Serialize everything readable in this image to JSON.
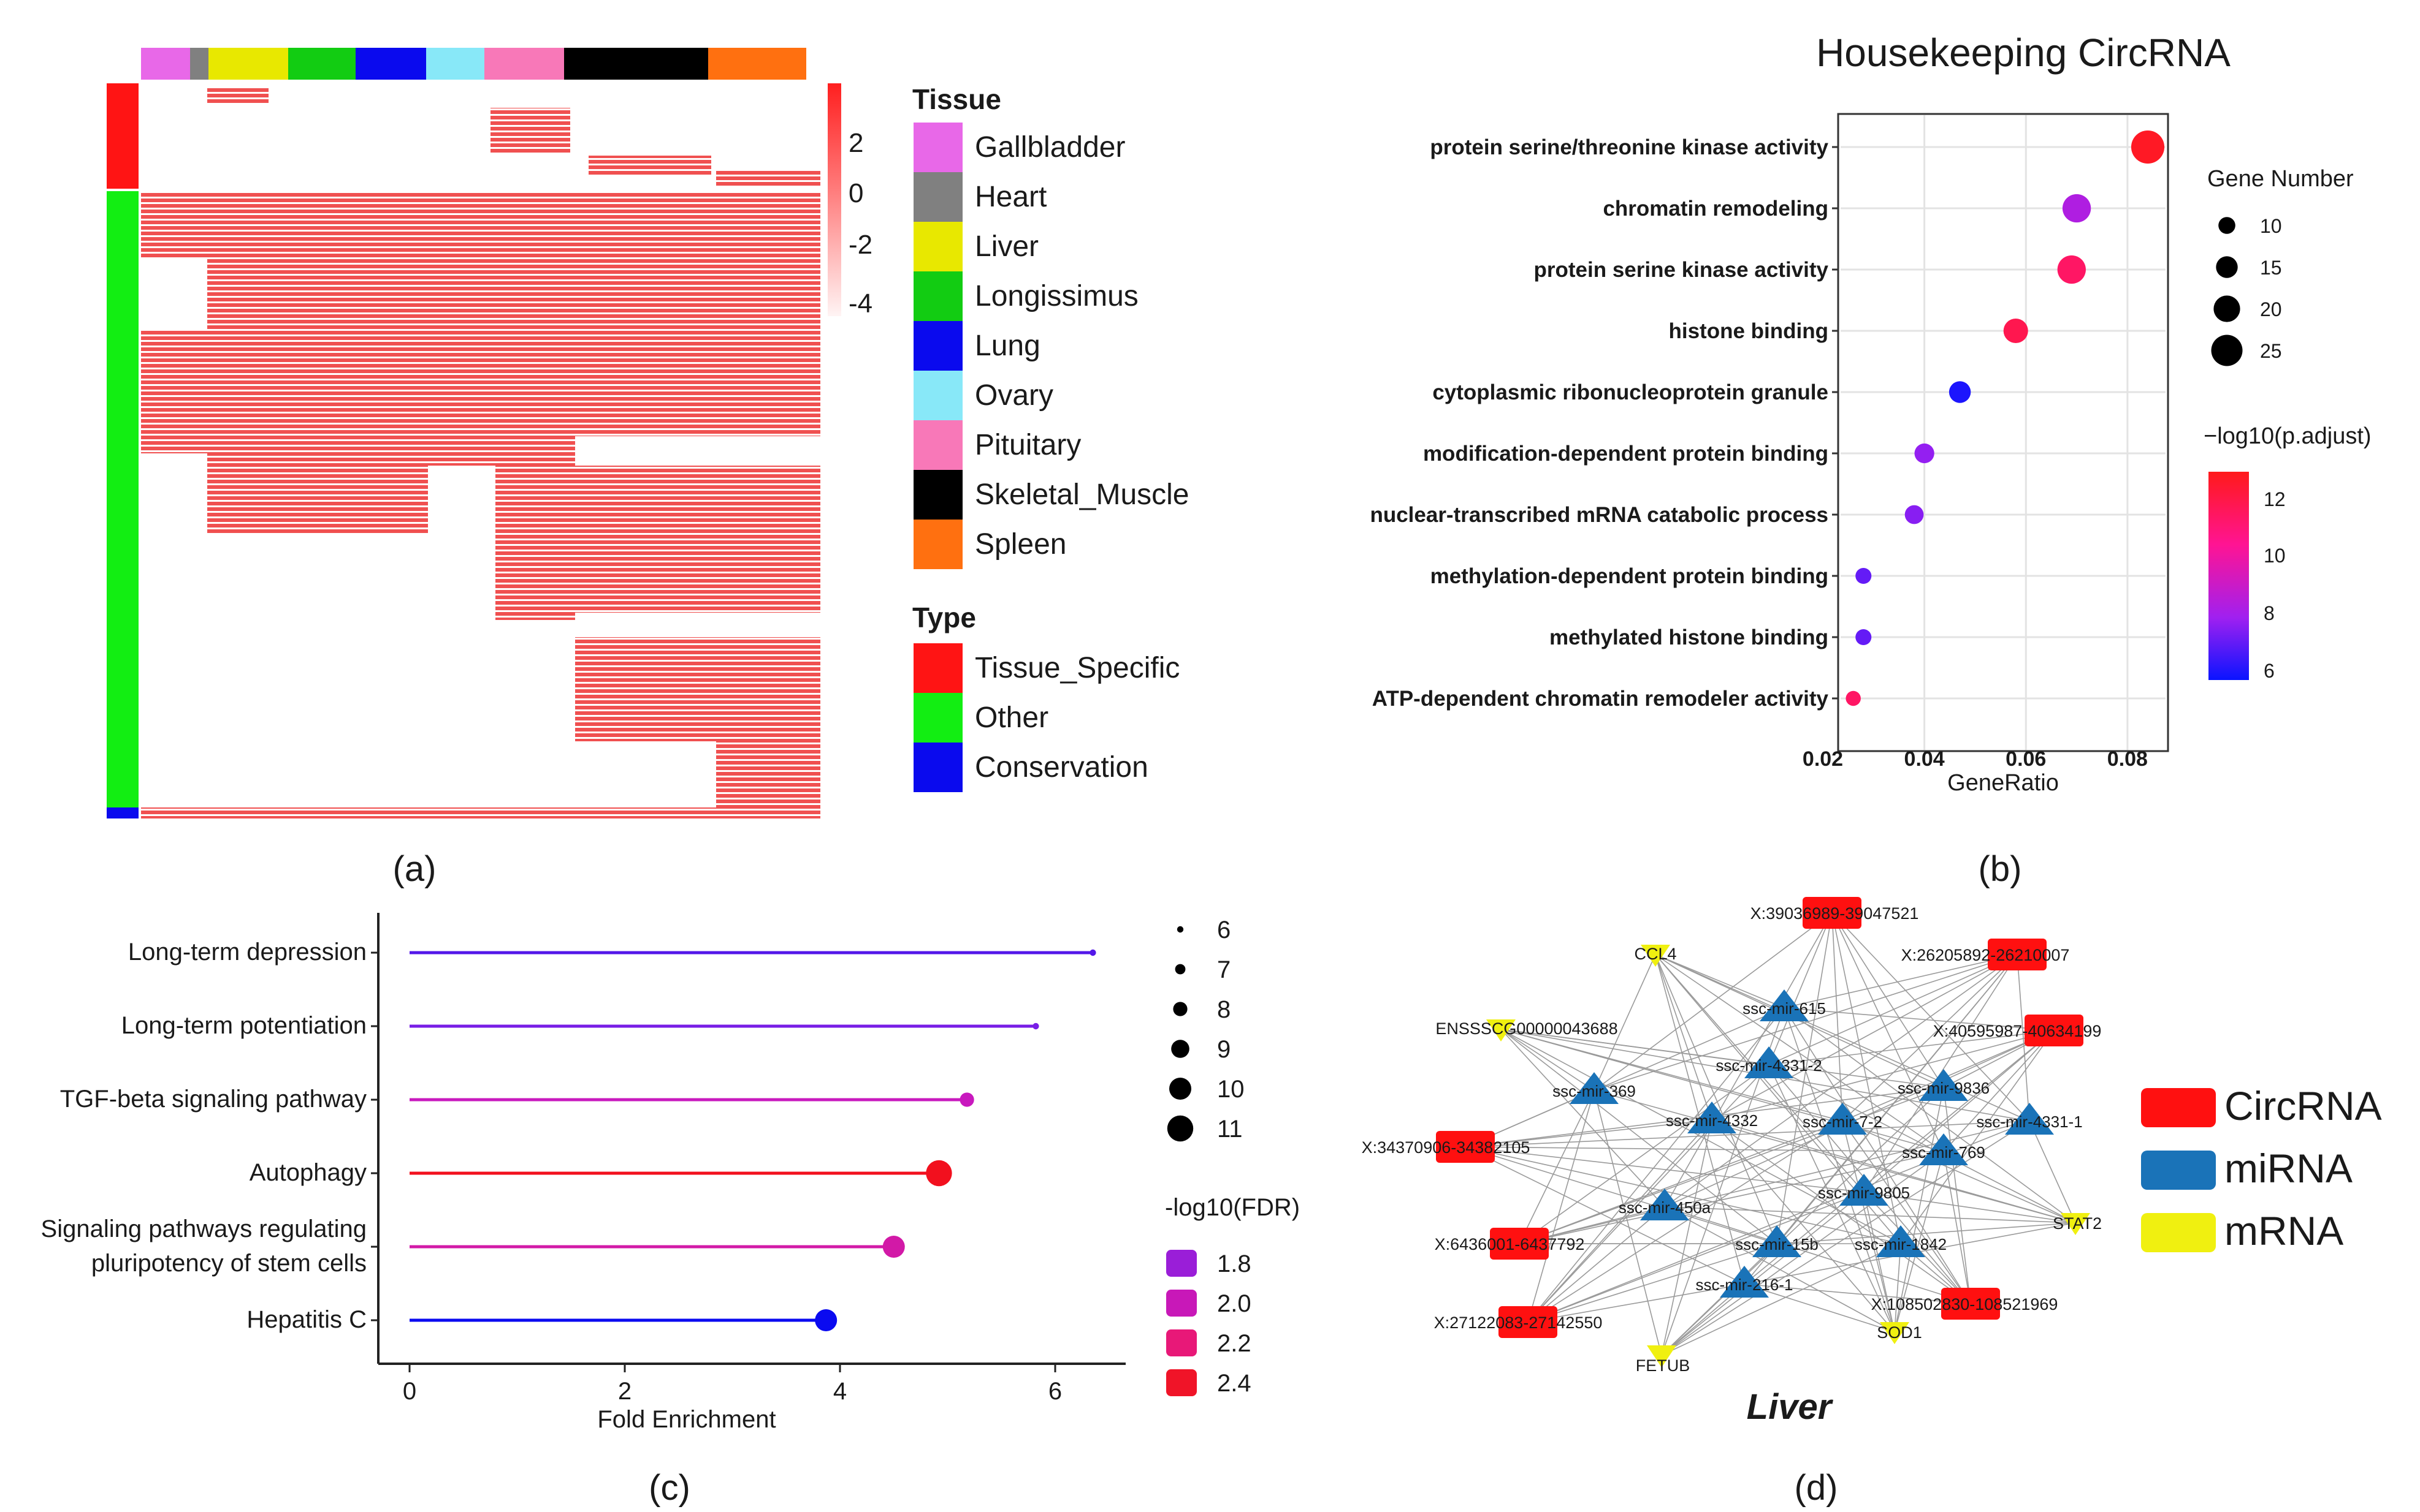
{
  "panel_a": {
    "panel_label": "(a)",
    "colorbar_ticks": [
      "2",
      "0",
      "-2",
      "-4"
    ],
    "tissue_title": "Tissue",
    "tissues": [
      {
        "name": "Gallbladder",
        "color": "#e868e8"
      },
      {
        "name": "Heart",
        "color": "#808080"
      },
      {
        "name": "Liver",
        "color": "#e8e800"
      },
      {
        "name": "Longissimus",
        "color": "#12cc12"
      },
      {
        "name": "Lung",
        "color": "#0a0aee"
      },
      {
        "name": "Ovary",
        "color": "#88e8f8"
      },
      {
        "name": "Pituitary",
        "color": "#f878b8"
      },
      {
        "name": "Skeletal_Muscle",
        "color": "#000000"
      },
      {
        "name": "Spleen",
        "color": "#ff7010"
      }
    ],
    "type_title": "Type",
    "types": [
      {
        "name": "Tissue_Specific",
        "color": "#ff1414"
      },
      {
        "name": "Other",
        "color": "#12ee12"
      },
      {
        "name": "Conservation",
        "color": "#0a0aee"
      }
    ]
  },
  "panel_b": {
    "panel_label": "(b)",
    "size_legend_title": "Gene Number",
    "size_legend_values": [
      "10",
      "15",
      "20",
      "25"
    ],
    "color_legend_title": "−log10(p.adjust)",
    "color_legend_ticks": [
      "12",
      "10",
      "8",
      "6"
    ]
  },
  "panel_c": {
    "panel_label": "(c)",
    "size_legend_values": [
      "6",
      "7",
      "8",
      "9",
      "10",
      "11"
    ],
    "color_legend_title": "-log10(FDR)",
    "color_legend": [
      {
        "label": "1.8",
        "color": "#9a1ed8"
      },
      {
        "label": "2.0",
        "color": "#c818b8"
      },
      {
        "label": "2.2",
        "color": "#e81878"
      },
      {
        "label": "2.4",
        "color": "#f01428"
      }
    ]
  },
  "panel_d": {
    "panel_label": "(d)",
    "title": "Liver",
    "legend": [
      {
        "label": "CircRNA",
        "color": "#ff1010"
      },
      {
        "label": "miRNA",
        "color": "#1a73b8"
      },
      {
        "label": "mRNA",
        "color": "#f0f010"
      }
    ],
    "circ_nodes": [
      "X:39036989-39047521",
      "X:26205892-26210007",
      "X:40595987-40634199",
      "X:34370906-34382105",
      "X:6436001-6437792",
      "X:27122083-27142550",
      "X:108502830-108521969"
    ],
    "mirna_nodes": [
      "ssc-mir-615",
      "ssc-mir-4331-2",
      "ssc-mir-369",
      "ssc-mir-9836",
      "ssc-mir-4332",
      "ssc-mir-7-2",
      "ssc-mir-4331-1",
      "ssc-mir-769",
      "ssc-mir-9805",
      "ssc-mir-450a",
      "ssc-mir-15b",
      "ssc-mir-1842",
      "ssc-mir-216-1"
    ],
    "mrna_nodes": [
      "CCL4",
      "ENSSSCG00000043688",
      "STAT2",
      "SOD1",
      "FETUB"
    ]
  },
  "chart_data": [
    {
      "type": "heatmap",
      "panel": "a",
      "value_range": [
        -4,
        2.5
      ],
      "columns_groups": [
        "Gallbladder",
        "Heart",
        "Liver",
        "Longissimus",
        "Lung",
        "Ovary",
        "Pituitary",
        "Skeletal_Muscle",
        "Spleen"
      ],
      "row_groups": [
        "Tissue_Specific",
        "Other",
        "Conservation"
      ]
    },
    {
      "type": "scatter",
      "panel": "b",
      "title": "Housekeeping CircRNA",
      "xlabel": "GeneRatio",
      "ylabel": "",
      "xlim": [
        0.02,
        0.088
      ],
      "x_ticks": [
        "0.02",
        "0.04",
        "0.06",
        "0.08"
      ],
      "categories": [
        "protein serine/threonine kinase activity",
        "chromatin remodeling",
        "protein serine kinase activity",
        "histone binding",
        "cytoplasmic ribonucleoprotein granule",
        "modification-dependent protein binding",
        "nuclear-transcribed mRNA catabolic process",
        "methylation-dependent protein binding",
        "methylated histone binding",
        "ATP-dependent chromatin remodeler activity"
      ],
      "gene_ratio": [
        0.084,
        0.07,
        0.069,
        0.058,
        0.047,
        0.04,
        0.038,
        0.028,
        0.028,
        0.026
      ],
      "gene_number": [
        27,
        22,
        22,
        18,
        15,
        13,
        12,
        9,
        9,
        8
      ],
      "p_adjust_log10": [
        12.6,
        8.4,
        11.4,
        11.8,
        5.8,
        7.8,
        7.6,
        7.0,
        7.0,
        11.4
      ]
    },
    {
      "type": "lollipop",
      "panel": "c",
      "xlabel": "Fold Enrichment",
      "ylabel": "",
      "xlim": [
        -0.3,
        6.8
      ],
      "x_ticks": [
        "0",
        "2",
        "4",
        "6"
      ],
      "categories": [
        "Long-term depression",
        "Long-term potentiation",
        "TGF-beta signaling pathway",
        "Autophagy",
        "Signaling pathways regulating pluripotency of stem cells",
        "Hepatitis C"
      ],
      "category_lines": [
        [
          "Long-term depression"
        ],
        [
          "Long-term potentiation"
        ],
        [
          "TGF-beta signaling pathway"
        ],
        [
          "Autophagy"
        ],
        [
          "Signaling pathways regulating",
          "pluripotency of stem cells"
        ],
        [
          "Hepatitis C"
        ]
      ],
      "values": [
        6.35,
        5.82,
        5.18,
        4.92,
        4.5,
        3.87
      ],
      "gene_count": [
        6,
        6,
        8,
        11,
        10,
        10
      ],
      "fdr_log10": [
        1.8,
        1.85,
        2.05,
        2.4,
        2.1,
        1.7
      ]
    }
  ]
}
